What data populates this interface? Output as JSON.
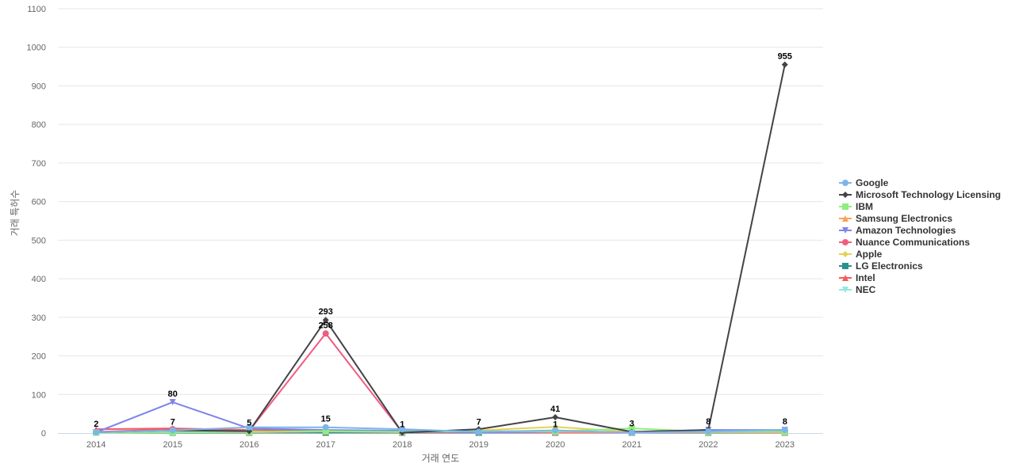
{
  "chart_data": {
    "type": "line",
    "xlabel": "거래 연도",
    "ylabel": "거래 특허수",
    "ylim": [
      0,
      1100
    ],
    "yticks": [
      0,
      100,
      200,
      300,
      400,
      500,
      600,
      700,
      800,
      900,
      1000,
      1100
    ],
    "x": [
      "2014",
      "2015",
      "2016",
      "2017",
      "2018",
      "2019",
      "2020",
      "2021",
      "2022",
      "2023"
    ],
    "grid": true,
    "legend_position": "right",
    "series": [
      {
        "name": "Google",
        "color": "#7cb5ec",
        "marker": "circle",
        "values": [
          2,
          7,
          15,
          15,
          10,
          3,
          7,
          1,
          4,
          8
        ]
      },
      {
        "name": "Microsoft Technology Licensing",
        "color": "#434348",
        "marker": "diamond",
        "values": [
          2,
          7,
          5,
          293,
          1,
          10,
          41,
          3,
          8,
          955
        ]
      },
      {
        "name": "IBM",
        "color": "#90ed7d",
        "marker": "square",
        "values": [
          1,
          2,
          3,
          5,
          3,
          5,
          4,
          12,
          3,
          3
        ]
      },
      {
        "name": "Samsung Electronics",
        "color": "#f7a35c",
        "marker": "triangle",
        "values": [
          1,
          3,
          2,
          4,
          2,
          6,
          3,
          2,
          2,
          2
        ]
      },
      {
        "name": "Amazon Technologies",
        "color": "#8085e9",
        "marker": "triangle-down",
        "values": [
          2,
          80,
          12,
          8,
          6,
          2,
          3,
          2,
          8,
          8
        ]
      },
      {
        "name": "Nuance Communications",
        "color": "#f15c80",
        "marker": "circle",
        "values": [
          3,
          10,
          6,
          258,
          2,
          2,
          1,
          1,
          2,
          1
        ]
      },
      {
        "name": "Apple",
        "color": "#e4d354",
        "marker": "diamond",
        "values": [
          1,
          3,
          2,
          5,
          3,
          7,
          16,
          3,
          2,
          2
        ]
      },
      {
        "name": "LG Electronics",
        "color": "#2b908f",
        "marker": "square",
        "values": [
          1,
          1,
          1,
          1,
          1,
          1,
          1,
          1,
          1,
          1
        ]
      },
      {
        "name": "Intel",
        "color": "#f45b5b",
        "marker": "triangle",
        "values": [
          10,
          12,
          8,
          5,
          4,
          3,
          2,
          2,
          8,
          5
        ]
      },
      {
        "name": "NEC",
        "color": "#91e8e1",
        "marker": "triangle-down",
        "values": [
          1,
          2,
          1,
          3,
          2,
          1,
          2,
          2,
          1,
          2
        ]
      }
    ],
    "data_labels": [
      {
        "x": "2014",
        "value": 2
      },
      {
        "x": "2015",
        "value": 80
      },
      {
        "x": "2015",
        "value": 7
      },
      {
        "x": "2016",
        "value": 5
      },
      {
        "x": "2017",
        "value": 293
      },
      {
        "x": "2017",
        "value": 258
      },
      {
        "x": "2017",
        "value": 15
      },
      {
        "x": "2018",
        "value": 1
      },
      {
        "x": "2019",
        "value": 7
      },
      {
        "x": "2020",
        "value": 41
      },
      {
        "x": "2020",
        "value": 1
      },
      {
        "x": "2021",
        "value": 3
      },
      {
        "x": "2022",
        "value": 8
      },
      {
        "x": "2023",
        "value": 955
      },
      {
        "x": "2023",
        "value": 8
      }
    ]
  }
}
